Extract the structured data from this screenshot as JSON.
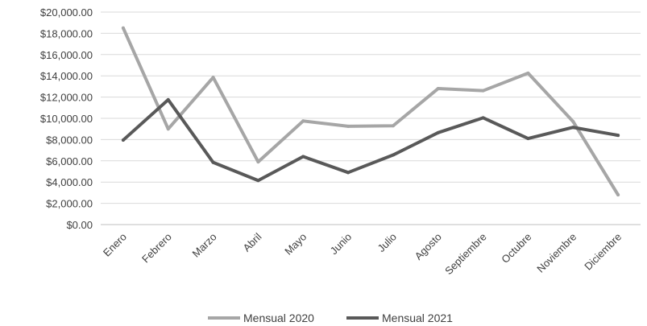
{
  "chart_data": {
    "type": "line",
    "categories": [
      "Enero",
      "Febrero",
      "Marzo",
      "Abril",
      "Mayo",
      "Junio",
      "Julio",
      "Agosto",
      "Septiembre",
      "Octubre",
      "Noviembre",
      "Diciembre"
    ],
    "series": [
      {
        "name": "Mensual 2020",
        "color": "#a6a6a6",
        "values": [
          18500,
          9000,
          13850,
          5900,
          9750,
          9250,
          9300,
          12800,
          12600,
          14250,
          9700,
          2800
        ]
      },
      {
        "name": "Mensual 2021",
        "color": "#595959",
        "values": [
          7950,
          11750,
          5850,
          4150,
          6400,
          4900,
          6550,
          8650,
          10050,
          8100,
          9150,
          8400
        ]
      }
    ],
    "ylim": [
      0,
      20000
    ],
    "y_ticks": [
      {
        "value": 0,
        "label": "$0.00"
      },
      {
        "value": 2000,
        "label": "$2,000.00"
      },
      {
        "value": 4000,
        "label": "$4,000.00"
      },
      {
        "value": 6000,
        "label": "$6,000.00"
      },
      {
        "value": 8000,
        "label": "$8,000.00"
      },
      {
        "value": 10000,
        "label": "$10,000.00"
      },
      {
        "value": 12000,
        "label": "$12,000.00"
      },
      {
        "value": 14000,
        "label": "$14,000.00"
      },
      {
        "value": 16000,
        "label": "$16,000.00"
      },
      {
        "value": 18000,
        "label": "$18,000.00"
      },
      {
        "value": 20000,
        "label": "$20,000.00"
      }
    ],
    "grid": true,
    "legend_position": "bottom",
    "title": "",
    "xlabel": "",
    "ylabel": ""
  }
}
